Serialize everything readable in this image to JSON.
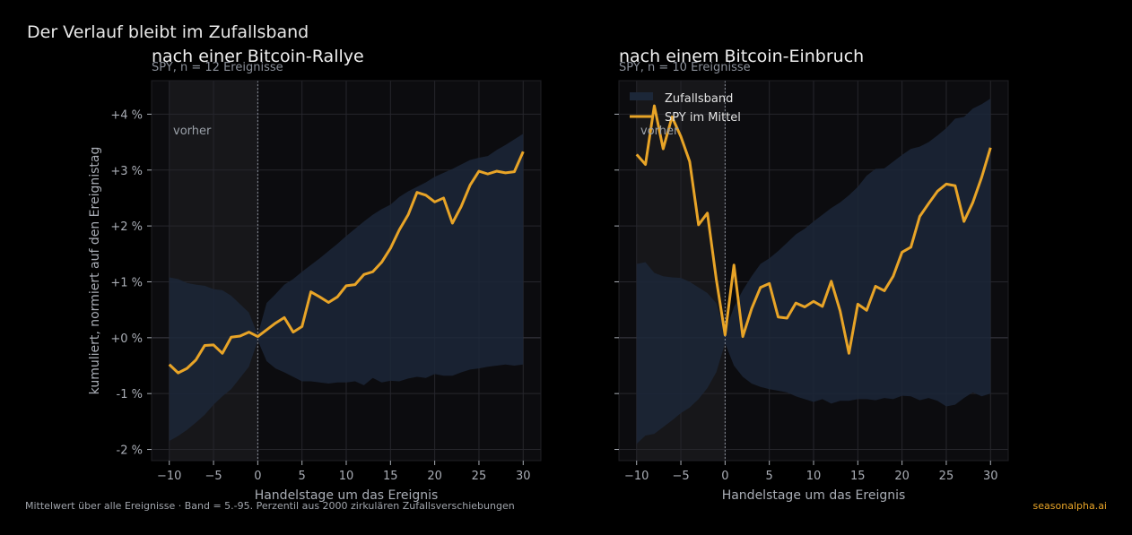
{
  "figure": {
    "suptitle": "Der Verlauf bleibt im Zufallsband",
    "footnote": "Mittelwert über alle Ereignisse · Band = 5.-95. Perzentil aus 2000 zirkulären Zufallsverschiebungen",
    "brand": "seasonalpha.ai"
  },
  "colors": {
    "background": "#000000",
    "panel": "#0c0c0f",
    "pre_shade": "#17171a",
    "band": "#1c2738",
    "line": "#e8a427",
    "grid": "#26262c"
  },
  "chart_data": [
    {
      "type": "line",
      "title": "nach einer Bitcoin-Rallye",
      "subtitle": "SPY, n = 12 Ereignisse",
      "xlabel": "Handelstage um das Ereignis",
      "ylabel": "kumuliert, normiert auf den Ereignistag",
      "xlim": [
        -12,
        32
      ],
      "ylim": [
        -2.2,
        4.6
      ],
      "xticks": [
        -10,
        -5,
        0,
        5,
        10,
        15,
        20,
        25,
        30
      ],
      "xtick_labels": [
        "−10",
        "−5",
        "0",
        "5",
        "10",
        "15",
        "20",
        "25",
        "30"
      ],
      "yticks": [
        -2,
        -1,
        0,
        1,
        2,
        3,
        4
      ],
      "ytick_labels": [
        "-2 %",
        "-1 %",
        "+0 %",
        "+1 %",
        "+2 %",
        "+3 %",
        "+4 %"
      ],
      "grid": true,
      "pre_label": "vorher",
      "x": [
        -10,
        -9,
        -8,
        -7,
        -6,
        -5,
        -4,
        -3,
        -2,
        -1,
        0,
        1,
        2,
        3,
        4,
        5,
        6,
        7,
        8,
        9,
        10,
        11,
        12,
        13,
        14,
        15,
        16,
        17,
        18,
        19,
        20,
        21,
        22,
        23,
        24,
        25,
        26,
        27,
        28,
        29,
        30
      ],
      "series": [
        {
          "name": "SPY im Mittel",
          "values": [
            -0.48,
            -0.63,
            -0.55,
            -0.4,
            -0.14,
            -0.13,
            -0.28,
            0.01,
            0.03,
            0.1,
            0.02,
            0.14,
            0.26,
            0.36,
            0.1,
            0.2,
            0.82,
            0.73,
            0.63,
            0.73,
            0.93,
            0.95,
            1.13,
            1.18,
            1.35,
            1.6,
            1.93,
            2.2,
            2.6,
            2.55,
            2.43,
            2.5,
            2.05,
            2.35,
            2.73,
            2.98,
            2.93,
            2.98,
            2.95,
            2.97,
            3.33
          ]
        }
      ],
      "band": {
        "name": "Zufallsband",
        "upper": [
          1.08,
          1.05,
          0.98,
          0.95,
          0.93,
          0.87,
          0.85,
          0.75,
          0.6,
          0.45,
          0.05,
          0.62,
          0.78,
          0.95,
          1.05,
          1.18,
          1.3,
          1.42,
          1.55,
          1.68,
          1.82,
          1.95,
          2.08,
          2.2,
          2.3,
          2.38,
          2.52,
          2.62,
          2.7,
          2.78,
          2.88,
          2.95,
          3.02,
          3.1,
          3.18,
          3.22,
          3.25,
          3.36,
          3.45,
          3.55,
          3.65
        ],
        "lower": [
          -1.85,
          -1.76,
          -1.65,
          -1.52,
          -1.38,
          -1.2,
          -1.05,
          -0.92,
          -0.72,
          -0.52,
          -0.05,
          -0.42,
          -0.55,
          -0.62,
          -0.7,
          -0.78,
          -0.78,
          -0.8,
          -0.82,
          -0.8,
          -0.8,
          -0.78,
          -0.85,
          -0.72,
          -0.8,
          -0.77,
          -0.78,
          -0.73,
          -0.7,
          -0.72,
          -0.65,
          -0.68,
          -0.68,
          -0.62,
          -0.57,
          -0.55,
          -0.52,
          -0.5,
          -0.48,
          -0.5,
          -0.48
        ]
      }
    },
    {
      "type": "line",
      "title": "nach einem Bitcoin-Einbruch",
      "subtitle": "SPY, n = 10 Ereignisse",
      "xlabel": "Handelstage um das Ereignis",
      "xlim": [
        -12,
        32
      ],
      "ylim": [
        -2.2,
        4.6
      ],
      "xticks": [
        -10,
        -5,
        0,
        5,
        10,
        15,
        20,
        25,
        30
      ],
      "xtick_labels": [
        "−10",
        "−5",
        "0",
        "5",
        "10",
        "15",
        "20",
        "25",
        "30"
      ],
      "yticks": [
        -2,
        -1,
        0,
        1,
        2,
        3,
        4
      ],
      "grid": true,
      "pre_label": "vorher",
      "legend": {
        "placement": "top-left",
        "entries": [
          "Zufallsband",
          "SPY im Mittel"
        ]
      },
      "x": [
        -10,
        -9,
        -8,
        -7,
        -6,
        -5,
        -4,
        -3,
        -2,
        -1,
        0,
        1,
        2,
        3,
        4,
        5,
        6,
        7,
        8,
        9,
        10,
        11,
        12,
        13,
        14,
        15,
        16,
        17,
        18,
        19,
        20,
        21,
        22,
        23,
        24,
        25,
        26,
        27,
        28,
        29,
        30
      ],
      "series": [
        {
          "name": "SPY im Mittel",
          "values": [
            3.28,
            3.1,
            4.15,
            3.38,
            3.95,
            3.6,
            3.15,
            2.02,
            2.23,
            1.05,
            0.05,
            1.3,
            0.02,
            0.52,
            0.9,
            0.97,
            0.37,
            0.35,
            0.62,
            0.55,
            0.65,
            0.56,
            1.01,
            0.48,
            -0.28,
            0.6,
            0.49,
            0.92,
            0.84,
            1.1,
            1.53,
            1.62,
            2.17,
            2.4,
            2.62,
            2.75,
            2.72,
            2.08,
            2.42,
            2.87,
            3.4
          ]
        }
      ],
      "band": {
        "name": "Zufallsband",
        "upper": [
          1.32,
          1.35,
          1.16,
          1.1,
          1.08,
          1.07,
          1.0,
          0.9,
          0.8,
          0.62,
          0.1,
          0.55,
          0.85,
          1.1,
          1.32,
          1.42,
          1.55,
          1.7,
          1.85,
          1.95,
          2.08,
          2.2,
          2.32,
          2.42,
          2.55,
          2.7,
          2.9,
          3.02,
          3.03,
          3.15,
          3.27,
          3.38,
          3.42,
          3.5,
          3.62,
          3.75,
          3.92,
          3.95,
          4.1,
          4.18,
          4.28
        ],
        "lower": [
          -1.9,
          -1.75,
          -1.72,
          -1.6,
          -1.48,
          -1.35,
          -1.25,
          -1.1,
          -0.9,
          -0.62,
          -0.1,
          -0.5,
          -0.7,
          -0.82,
          -0.88,
          -0.92,
          -0.95,
          -0.98,
          -1.05,
          -1.1,
          -1.15,
          -1.1,
          -1.18,
          -1.13,
          -1.13,
          -1.1,
          -1.1,
          -1.12,
          -1.08,
          -1.1,
          -1.04,
          -1.05,
          -1.12,
          -1.08,
          -1.13,
          -1.23,
          -1.2,
          -1.08,
          -0.98,
          -1.05,
          -1.0
        ]
      }
    }
  ]
}
